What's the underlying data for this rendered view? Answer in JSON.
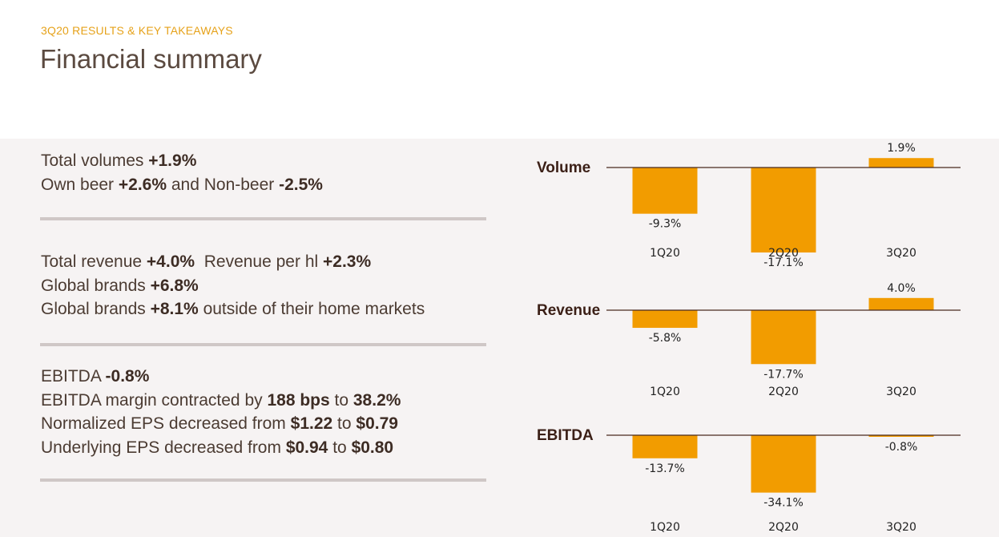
{
  "header": {
    "subtitle": "3Q20 RESULTS & KEY TAKEAWAYS",
    "title": "Financial summary"
  },
  "takeaways": {
    "volume": [
      [
        {
          "t": "Total volumes "
        },
        {
          "t": "+1.9%",
          "b": true
        }
      ],
      [
        {
          "t": "Own beer "
        },
        {
          "t": "+2.6%",
          "b": true
        },
        {
          "t": " and Non-beer "
        },
        {
          "t": "-2.5%",
          "b": true
        }
      ]
    ],
    "revenue": [
      [
        {
          "t": "Total revenue "
        },
        {
          "t": "+4.0%",
          "b": true
        },
        {
          "t": "  Revenue per hl "
        },
        {
          "t": "+2.3%",
          "b": true
        }
      ],
      [
        {
          "t": "Global brands "
        },
        {
          "t": "+6.8%",
          "b": true
        }
      ],
      [
        {
          "t": "Global brands "
        },
        {
          "t": "+8.1%",
          "b": true
        },
        {
          "t": " outside of their home markets"
        }
      ]
    ],
    "ebitda": [
      [
        {
          "t": "EBITDA "
        },
        {
          "t": "-0.8%",
          "b": true
        }
      ],
      [
        {
          "t": "EBITDA margin contracted by "
        },
        {
          "t": "188 bps",
          "b": true
        },
        {
          "t": " to "
        },
        {
          "t": "38.2%",
          "b": true
        }
      ],
      [
        {
          "t": "Normalized EPS decreased from "
        },
        {
          "t": "$1.22",
          "b": true
        },
        {
          "t": " to "
        },
        {
          "t": "$0.79",
          "b": true
        }
      ],
      [
        {
          "t": "Underlying EPS decreased from "
        },
        {
          "t": "$0.94",
          "b": true
        },
        {
          "t": " to "
        },
        {
          "t": "$0.80",
          "b": true
        }
      ]
    ]
  },
  "chart_data": [
    {
      "type": "bar",
      "title": "Volume",
      "categories": [
        "1Q20",
        "2Q20",
        "3Q20"
      ],
      "values": [
        -9.3,
        -17.1,
        1.9
      ],
      "labels": [
        "-9.3%",
        "-17.1%",
        "1.9%"
      ]
    },
    {
      "type": "bar",
      "title": "Revenue",
      "categories": [
        "1Q20",
        "2Q20",
        "3Q20"
      ],
      "values": [
        -5.8,
        -17.7,
        4.0
      ],
      "labels": [
        "-5.8%",
        "-17.7%",
        "4.0%"
      ]
    },
    {
      "type": "bar",
      "title": "EBITDA",
      "categories": [
        "1Q20",
        "2Q20",
        "3Q20"
      ],
      "values": [
        -13.7,
        -34.1,
        -0.8
      ],
      "labels": [
        "-13.7%",
        "-34.1%",
        "-0.8%"
      ]
    }
  ],
  "colors": {
    "bar": "#f29c00",
    "axis": "#4a2a1e",
    "panel": "#f6f3f3",
    "heading": "#e6a21a"
  }
}
